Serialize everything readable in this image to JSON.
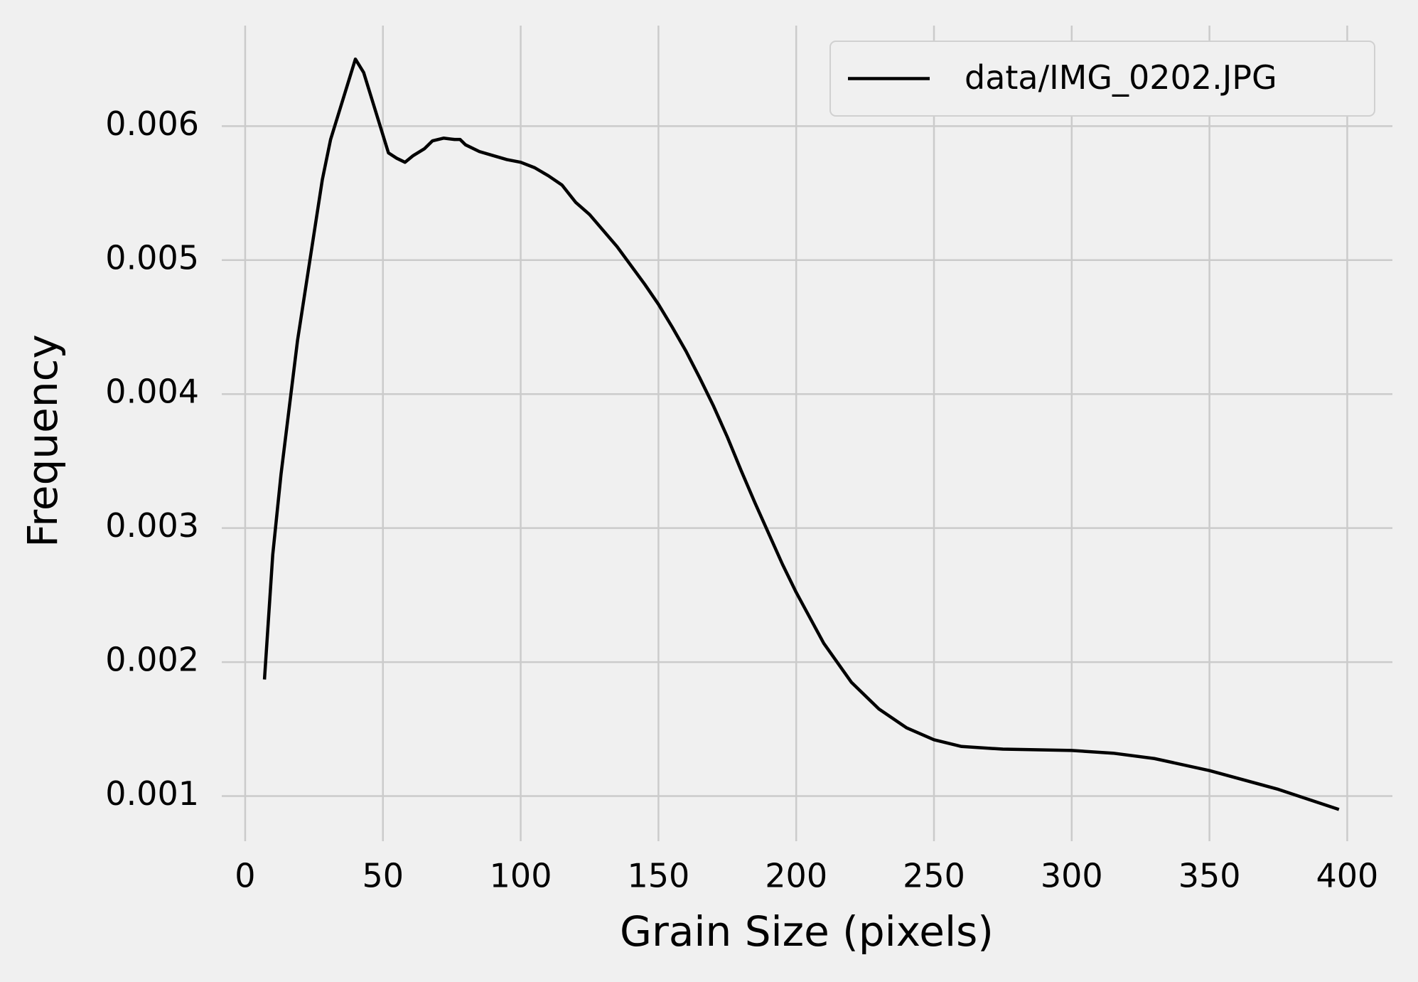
{
  "chart_data": {
    "type": "line",
    "x_label": "Grain Size (pixels)",
    "y_label": "Frequency",
    "legend_position": "upper right",
    "grid": true,
    "xlim": [
      -8.5,
      416.4
    ],
    "ylim": [
      0.000663,
      0.00675
    ],
    "xticks": [
      0,
      50,
      100,
      150,
      200,
      250,
      300,
      350,
      400
    ],
    "yticks": [
      0.001,
      0.002,
      0.003,
      0.004,
      0.005,
      0.006
    ],
    "x": [
      7,
      10,
      13,
      16,
      19,
      22,
      25,
      28,
      31,
      34,
      37,
      40,
      43,
      46,
      49,
      52,
      55,
      58,
      61,
      65,
      68,
      72,
      76,
      78,
      80,
      85,
      90,
      95,
      100,
      105,
      110,
      115,
      120,
      125,
      130,
      135,
      140,
      145,
      150,
      155,
      160,
      165,
      170,
      175,
      180,
      185,
      190,
      195,
      200,
      210,
      220,
      230,
      240,
      250,
      260,
      275,
      300,
      315,
      330,
      350,
      375,
      397
    ],
    "series": [
      {
        "name": "data/IMG_0202.JPG",
        "color": "#000000",
        "values": [
          0.00187,
          0.0028,
          0.0034,
          0.0039,
          0.0044,
          0.0048,
          0.0052,
          0.0056,
          0.0059,
          0.0061,
          0.0063,
          0.0065,
          0.0064,
          0.0062,
          0.006,
          0.0058,
          0.00576,
          0.00573,
          0.00578,
          0.00583,
          0.00589,
          0.00591,
          0.0059,
          0.0059,
          0.00586,
          0.00581,
          0.00578,
          0.00575,
          0.00573,
          0.00569,
          0.00563,
          0.00556,
          0.00543,
          0.00534,
          0.00522,
          0.0051,
          0.00496,
          0.00482,
          0.00467,
          0.0045,
          0.00432,
          0.00412,
          0.00391,
          0.00368,
          0.00343,
          0.00319,
          0.00296,
          0.00273,
          0.00252,
          0.00214,
          0.00185,
          0.00165,
          0.00151,
          0.00142,
          0.00137,
          0.00135,
          0.00134,
          0.00132,
          0.00128,
          0.00119,
          0.00105,
          0.0009
        ]
      }
    ]
  }
}
